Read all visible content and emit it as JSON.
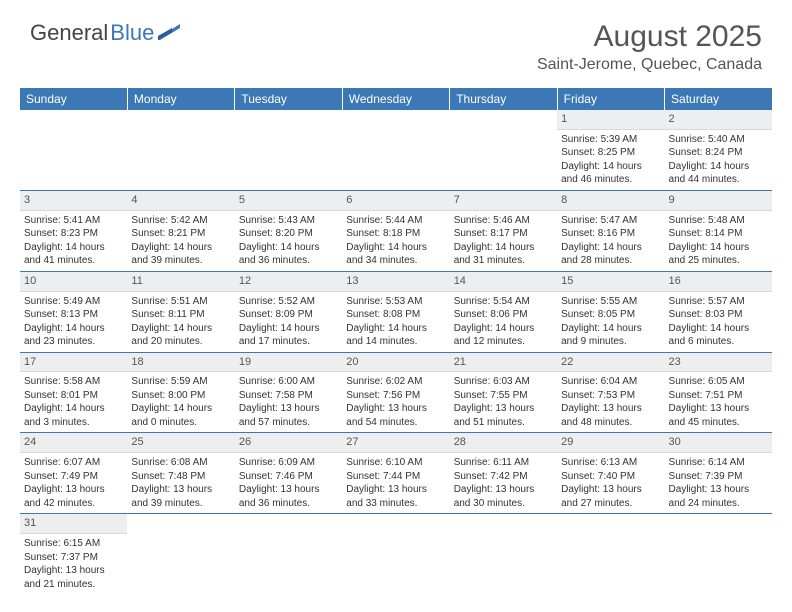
{
  "logo": {
    "word1": "General",
    "word2": "Blue"
  },
  "title": "August 2025",
  "location": "Saint-Jerome, Quebec, Canada",
  "colors": {
    "headerBg": "#3b78b5",
    "dayBg": "#eceeef"
  },
  "days": [
    "Sunday",
    "Monday",
    "Tuesday",
    "Wednesday",
    "Thursday",
    "Friday",
    "Saturday"
  ],
  "weeks": [
    [
      null,
      null,
      null,
      null,
      null,
      {
        "n": "1",
        "sr": "5:39 AM",
        "ss": "8:25 PM",
        "dl": "14 hours and 46 minutes."
      },
      {
        "n": "2",
        "sr": "5:40 AM",
        "ss": "8:24 PM",
        "dl": "14 hours and 44 minutes."
      }
    ],
    [
      {
        "n": "3",
        "sr": "5:41 AM",
        "ss": "8:23 PM",
        "dl": "14 hours and 41 minutes."
      },
      {
        "n": "4",
        "sr": "5:42 AM",
        "ss": "8:21 PM",
        "dl": "14 hours and 39 minutes."
      },
      {
        "n": "5",
        "sr": "5:43 AM",
        "ss": "8:20 PM",
        "dl": "14 hours and 36 minutes."
      },
      {
        "n": "6",
        "sr": "5:44 AM",
        "ss": "8:18 PM",
        "dl": "14 hours and 34 minutes."
      },
      {
        "n": "7",
        "sr": "5:46 AM",
        "ss": "8:17 PM",
        "dl": "14 hours and 31 minutes."
      },
      {
        "n": "8",
        "sr": "5:47 AM",
        "ss": "8:16 PM",
        "dl": "14 hours and 28 minutes."
      },
      {
        "n": "9",
        "sr": "5:48 AM",
        "ss": "8:14 PM",
        "dl": "14 hours and 25 minutes."
      }
    ],
    [
      {
        "n": "10",
        "sr": "5:49 AM",
        "ss": "8:13 PM",
        "dl": "14 hours and 23 minutes."
      },
      {
        "n": "11",
        "sr": "5:51 AM",
        "ss": "8:11 PM",
        "dl": "14 hours and 20 minutes."
      },
      {
        "n": "12",
        "sr": "5:52 AM",
        "ss": "8:09 PM",
        "dl": "14 hours and 17 minutes."
      },
      {
        "n": "13",
        "sr": "5:53 AM",
        "ss": "8:08 PM",
        "dl": "14 hours and 14 minutes."
      },
      {
        "n": "14",
        "sr": "5:54 AM",
        "ss": "8:06 PM",
        "dl": "14 hours and 12 minutes."
      },
      {
        "n": "15",
        "sr": "5:55 AM",
        "ss": "8:05 PM",
        "dl": "14 hours and 9 minutes."
      },
      {
        "n": "16",
        "sr": "5:57 AM",
        "ss": "8:03 PM",
        "dl": "14 hours and 6 minutes."
      }
    ],
    [
      {
        "n": "17",
        "sr": "5:58 AM",
        "ss": "8:01 PM",
        "dl": "14 hours and 3 minutes."
      },
      {
        "n": "18",
        "sr": "5:59 AM",
        "ss": "8:00 PM",
        "dl": "14 hours and 0 minutes."
      },
      {
        "n": "19",
        "sr": "6:00 AM",
        "ss": "7:58 PM",
        "dl": "13 hours and 57 minutes."
      },
      {
        "n": "20",
        "sr": "6:02 AM",
        "ss": "7:56 PM",
        "dl": "13 hours and 54 minutes."
      },
      {
        "n": "21",
        "sr": "6:03 AM",
        "ss": "7:55 PM",
        "dl": "13 hours and 51 minutes."
      },
      {
        "n": "22",
        "sr": "6:04 AM",
        "ss": "7:53 PM",
        "dl": "13 hours and 48 minutes."
      },
      {
        "n": "23",
        "sr": "6:05 AM",
        "ss": "7:51 PM",
        "dl": "13 hours and 45 minutes."
      }
    ],
    [
      {
        "n": "24",
        "sr": "6:07 AM",
        "ss": "7:49 PM",
        "dl": "13 hours and 42 minutes."
      },
      {
        "n": "25",
        "sr": "6:08 AM",
        "ss": "7:48 PM",
        "dl": "13 hours and 39 minutes."
      },
      {
        "n": "26",
        "sr": "6:09 AM",
        "ss": "7:46 PM",
        "dl": "13 hours and 36 minutes."
      },
      {
        "n": "27",
        "sr": "6:10 AM",
        "ss": "7:44 PM",
        "dl": "13 hours and 33 minutes."
      },
      {
        "n": "28",
        "sr": "6:11 AM",
        "ss": "7:42 PM",
        "dl": "13 hours and 30 minutes."
      },
      {
        "n": "29",
        "sr": "6:13 AM",
        "ss": "7:40 PM",
        "dl": "13 hours and 27 minutes."
      },
      {
        "n": "30",
        "sr": "6:14 AM",
        "ss": "7:39 PM",
        "dl": "13 hours and 24 minutes."
      }
    ],
    [
      {
        "n": "31",
        "sr": "6:15 AM",
        "ss": "7:37 PM",
        "dl": "13 hours and 21 minutes."
      },
      null,
      null,
      null,
      null,
      null,
      null
    ]
  ],
  "labels": {
    "sunrise": "Sunrise: ",
    "sunset": "Sunset: ",
    "daylight": "Daylight: "
  }
}
